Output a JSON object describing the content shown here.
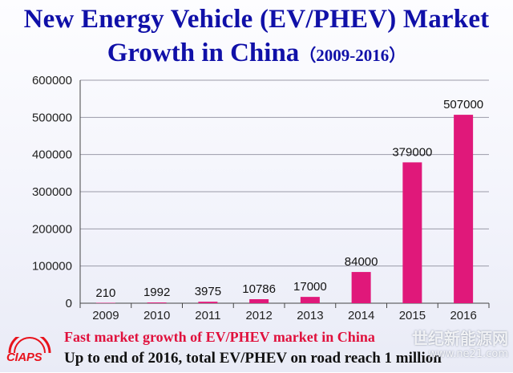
{
  "title": {
    "line1": "New Energy Vehicle (EV/PHEV) Market",
    "line2_main": "Growth in China",
    "line2_years": "（2009-2016）"
  },
  "chart_data": {
    "type": "bar",
    "categories": [
      "2009",
      "2010",
      "2011",
      "2012",
      "2013",
      "2014",
      "2015",
      "2016"
    ],
    "values": [
      210,
      1992,
      3975,
      10786,
      17000,
      84000,
      379000,
      507000
    ],
    "data_labels": [
      "210",
      "1992",
      "3975",
      "10786",
      "17000",
      "84000",
      "379000",
      "507000"
    ],
    "title": "",
    "xlabel": "",
    "ylabel": "",
    "ylim": [
      0,
      600000
    ],
    "yticks": [
      0,
      100000,
      200000,
      300000,
      400000,
      500000,
      600000
    ],
    "ytick_labels": [
      "0",
      "100000",
      "200000",
      "300000",
      "400000",
      "500000",
      "600000"
    ],
    "grid": true,
    "bar_color": "#e0187a",
    "legend": false
  },
  "footer": {
    "line1": "Fast market growth of EV/PHEV market in China",
    "line2": "Up to end of 2016, total EV/PHEV on road reach 1 million"
  },
  "logo": {
    "text": "CIAPS",
    "color": "#e8131c"
  },
  "watermark": {
    "cn": "世纪新能源网",
    "url": "www.ne21.com"
  },
  "colors": {
    "title": "#1010a8",
    "footer_highlight": "#e0103c",
    "bars": "#e0187a"
  }
}
